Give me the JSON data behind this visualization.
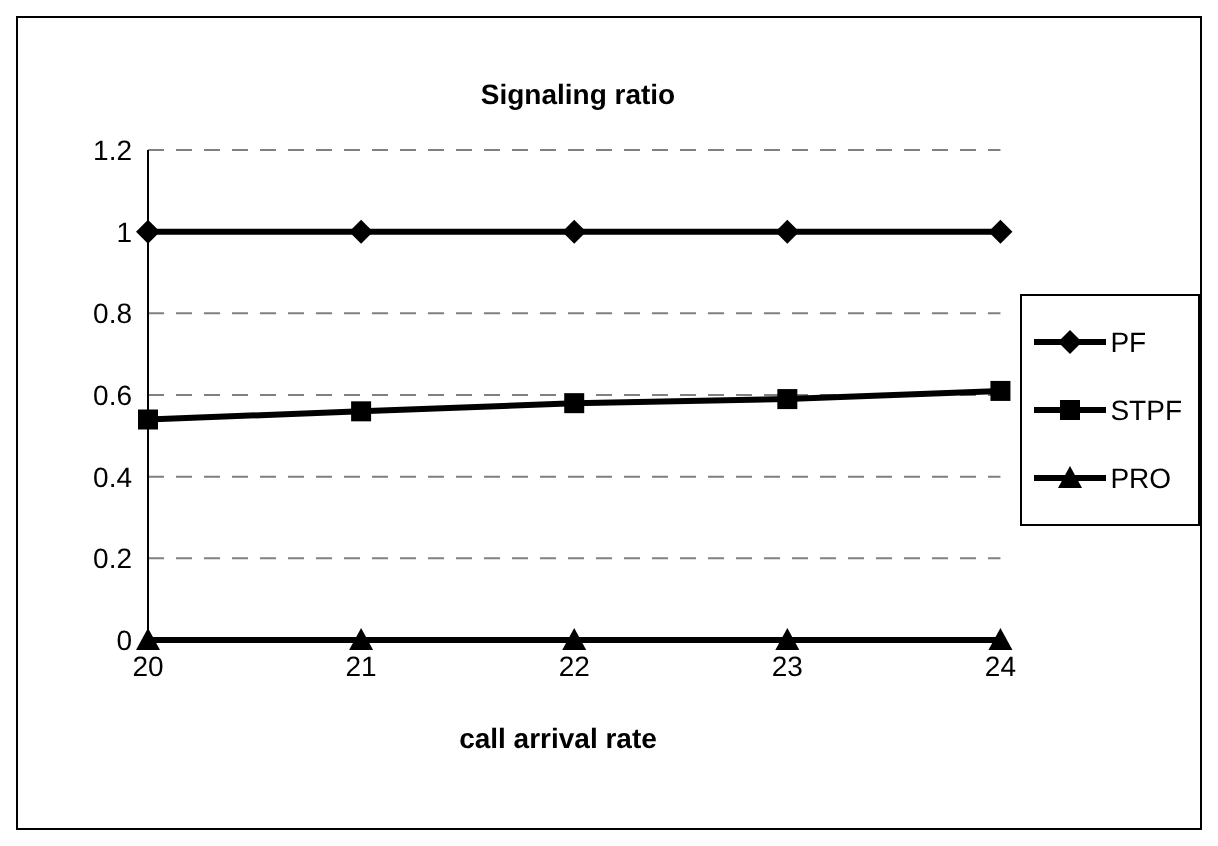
{
  "chart_data": {
    "type": "line",
    "title": "Signaling ratio",
    "xlabel": "call arrival rate",
    "x": [
      20,
      21,
      22,
      23,
      24
    ],
    "xlim": [
      20,
      24
    ],
    "xticks": [
      20,
      21,
      22,
      23,
      24
    ],
    "ylim": [
      0,
      1.2
    ],
    "yticks": [
      0,
      0.2,
      0.4,
      0.6,
      0.8,
      1,
      1.2
    ],
    "grid": "y",
    "legend": "right",
    "series": [
      {
        "name": "PF",
        "color": "#000000",
        "marker": "diamond",
        "values": [
          1,
          1,
          1,
          1,
          1
        ]
      },
      {
        "name": "STPF",
        "color": "#000000",
        "marker": "square",
        "values": [
          0.54,
          0.56,
          0.58,
          0.59,
          0.61
        ]
      },
      {
        "name": "PRO",
        "color": "#000000",
        "marker": "triangle",
        "values": [
          0,
          0,
          0,
          0,
          0
        ]
      }
    ]
  }
}
